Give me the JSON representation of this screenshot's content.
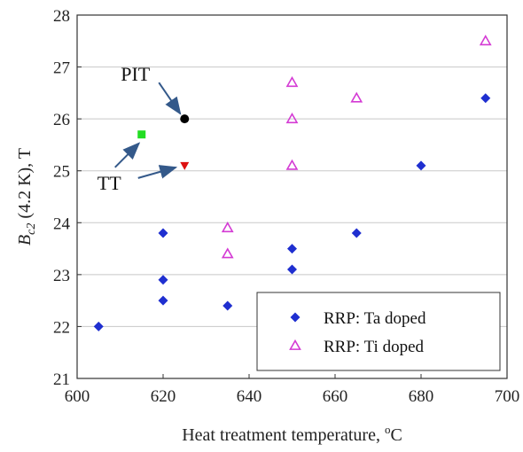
{
  "chart_data": {
    "type": "scatter",
    "title": "",
    "xlabel": "Heat treatment temperature, °C",
    "ylabel": "Bc2 (4.2 K), T",
    "ylabel_parts": {
      "main": "B",
      "sub": "c2",
      "rest": " (4.2 K), T"
    },
    "xlabel_parts": {
      "main": "Heat treatment temperature, ",
      "sup": "o",
      "rest": "C"
    },
    "xlim": [
      600,
      700
    ],
    "ylim": [
      21,
      28
    ],
    "x_ticks": [
      600,
      620,
      640,
      660,
      680,
      700
    ],
    "y_ticks": [
      21,
      22,
      23,
      24,
      25,
      26,
      27,
      28
    ],
    "grid": "horizontal",
    "legend_position": "bottom-right",
    "series": [
      {
        "name": "RRP: Ta doped",
        "marker": "diamond",
        "color": "#1f2fd0",
        "points": [
          {
            "x": 605,
            "y": 22.0
          },
          {
            "x": 620,
            "y": 22.5
          },
          {
            "x": 620,
            "y": 22.9
          },
          {
            "x": 620,
            "y": 23.8
          },
          {
            "x": 635,
            "y": 22.4
          },
          {
            "x": 650,
            "y": 23.1
          },
          {
            "x": 650,
            "y": 23.5
          },
          {
            "x": 665,
            "y": 23.8
          },
          {
            "x": 680,
            "y": 25.1
          },
          {
            "x": 695,
            "y": 26.4
          }
        ]
      },
      {
        "name": "RRP: Ti doped",
        "marker": "triangle-open",
        "color": "#d43ad4",
        "points": [
          {
            "x": 635,
            "y": 23.4
          },
          {
            "x": 635,
            "y": 23.9
          },
          {
            "x": 650,
            "y": 25.1
          },
          {
            "x": 650,
            "y": 26.0
          },
          {
            "x": 650,
            "y": 26.7
          },
          {
            "x": 665,
            "y": 26.4
          },
          {
            "x": 695,
            "y": 27.5
          }
        ]
      }
    ],
    "extra_points": [
      {
        "id": "pit",
        "x": 625,
        "y": 26.0,
        "marker": "circle",
        "color": "#000000"
      },
      {
        "id": "tt-green",
        "x": 615,
        "y": 25.7,
        "marker": "square",
        "color": "#22dd22"
      },
      {
        "id": "tt-red",
        "x": 625,
        "y": 25.1,
        "marker": "triangle-down",
        "color": "#dd1111"
      }
    ],
    "annotations": [
      {
        "text": "PIT",
        "target": "pit"
      },
      {
        "text": "TT",
        "targets": [
          "tt-green",
          "tt-red"
        ]
      }
    ]
  },
  "colors": {
    "arrow": "#34598a",
    "gridline": "#c8c8c8",
    "axis": "#333333"
  }
}
